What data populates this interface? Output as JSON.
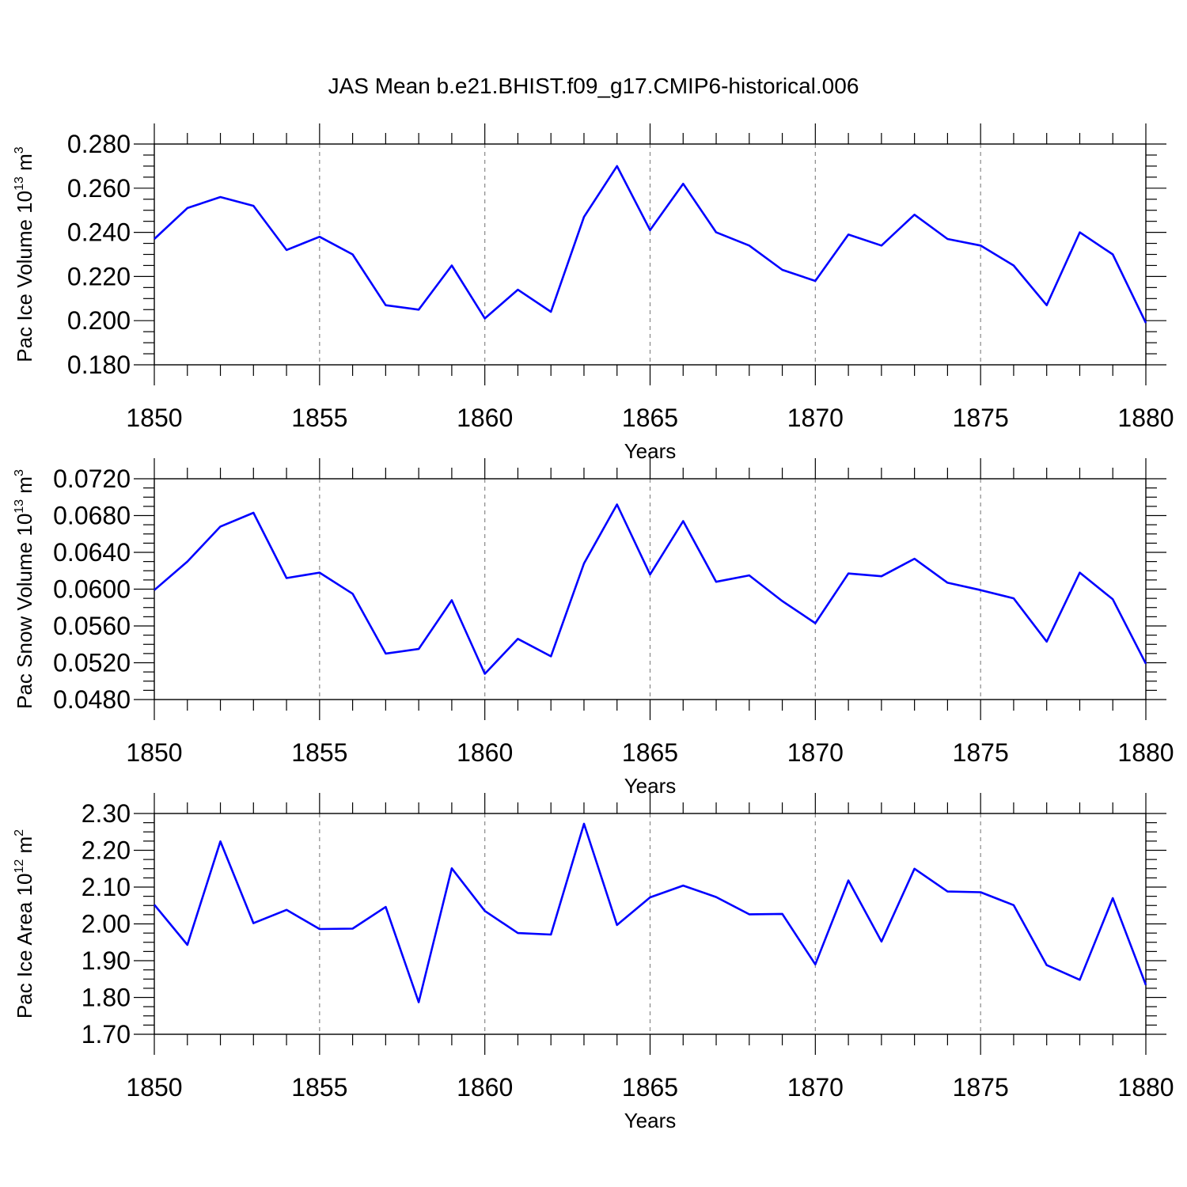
{
  "title": "JAS Mean b.e21.BHIST.f09_g17.CMIP6-historical.006",
  "colors": {
    "line": "#0000ff",
    "frame": "#000000",
    "grid": "#888888"
  },
  "chart_data": [
    {
      "type": "line",
      "xlabel": "Years",
      "ylabel": {
        "text": "Pac Ice Volume 10",
        "sup": "13",
        "unit": " m",
        "unit_sup": "3"
      },
      "xlim": [
        1850,
        1880
      ],
      "ylim": [
        0.18,
        0.28
      ],
      "x_ticks": [
        1850,
        1855,
        1860,
        1865,
        1870,
        1875,
        1880
      ],
      "y_ticks": [
        "0.180",
        "0.200",
        "0.220",
        "0.240",
        "0.260",
        "0.280"
      ],
      "x": [
        1850,
        1851,
        1852,
        1853,
        1854,
        1855,
        1856,
        1857,
        1858,
        1859,
        1860,
        1861,
        1862,
        1863,
        1864,
        1865,
        1866,
        1867,
        1868,
        1869,
        1870,
        1871,
        1872,
        1873,
        1874,
        1875,
        1876,
        1877,
        1878,
        1879,
        1880
      ],
      "values": [
        0.237,
        0.251,
        0.256,
        0.252,
        0.232,
        0.238,
        0.23,
        0.207,
        0.205,
        0.225,
        0.201,
        0.214,
        0.204,
        0.247,
        0.27,
        0.241,
        0.262,
        0.24,
        0.234,
        0.223,
        0.218,
        0.239,
        0.234,
        0.248,
        0.237,
        0.234,
        0.225,
        0.207,
        0.24,
        0.23,
        0.199
      ]
    },
    {
      "type": "line",
      "xlabel": "Years",
      "ylabel": {
        "text": "Pac Snow Volume 10",
        "sup": "13",
        "unit": " m",
        "unit_sup": "3"
      },
      "xlim": [
        1850,
        1880
      ],
      "ylim": [
        0.048,
        0.072
      ],
      "x_ticks": [
        1850,
        1855,
        1860,
        1865,
        1870,
        1875,
        1880
      ],
      "y_ticks": [
        "0.0480",
        "0.0520",
        "0.0560",
        "0.0600",
        "0.0640",
        "0.0680",
        "0.0720"
      ],
      "x": [
        1850,
        1851,
        1852,
        1853,
        1854,
        1855,
        1856,
        1857,
        1858,
        1859,
        1860,
        1861,
        1862,
        1863,
        1864,
        1865,
        1866,
        1867,
        1868,
        1869,
        1870,
        1871,
        1872,
        1873,
        1874,
        1875,
        1876,
        1877,
        1878,
        1879,
        1880
      ],
      "values": [
        0.0599,
        0.063,
        0.0668,
        0.0683,
        0.0612,
        0.0618,
        0.0595,
        0.053,
        0.0535,
        0.0588,
        0.0508,
        0.0546,
        0.0527,
        0.0628,
        0.0692,
        0.0616,
        0.0674,
        0.0608,
        0.0615,
        0.0587,
        0.0563,
        0.0617,
        0.0614,
        0.0633,
        0.0607,
        0.0599,
        0.059,
        0.0543,
        0.0618,
        0.0589,
        0.0519
      ]
    },
    {
      "type": "line",
      "xlabel": "Years",
      "ylabel": {
        "text": "Pac Ice Area 10",
        "sup": "12",
        "unit": " m",
        "unit_sup": "2"
      },
      "xlim": [
        1850,
        1880
      ],
      "ylim": [
        1.7,
        2.3
      ],
      "x_ticks": [
        1850,
        1855,
        1860,
        1865,
        1870,
        1875,
        1880
      ],
      "y_ticks": [
        "1.70",
        "1.80",
        "1.90",
        "2.00",
        "2.10",
        "2.20",
        "2.30"
      ],
      "x": [
        1850,
        1851,
        1852,
        1853,
        1854,
        1855,
        1856,
        1857,
        1858,
        1859,
        1860,
        1861,
        1862,
        1863,
        1864,
        1865,
        1866,
        1867,
        1868,
        1869,
        1870,
        1871,
        1872,
        1873,
        1874,
        1875,
        1876,
        1877,
        1878,
        1879,
        1880
      ],
      "values": [
        2.052,
        1.943,
        2.224,
        2.002,
        2.038,
        1.986,
        1.987,
        2.046,
        1.787,
        2.151,
        2.035,
        1.975,
        1.971,
        2.272,
        1.997,
        2.072,
        2.104,
        2.073,
        2.026,
        2.027,
        1.89,
        2.118,
        1.952,
        2.15,
        2.088,
        2.086,
        2.051,
        1.888,
        1.848,
        2.07,
        1.834
      ]
    }
  ]
}
